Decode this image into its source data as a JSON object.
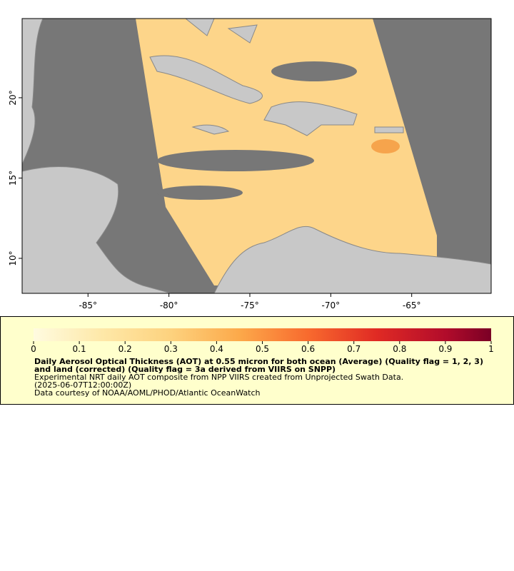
{
  "map": {
    "xlim": [
      -89.07,
      -60.09
    ],
    "ylim": [
      7.82,
      24.93
    ],
    "xticks": [
      {
        "value": -85,
        "label": "-85°"
      },
      {
        "value": -80,
        "label": "-80°"
      },
      {
        "value": -75,
        "label": "-75°"
      },
      {
        "value": -70,
        "label": "-70°"
      },
      {
        "value": -65,
        "label": "-65°"
      }
    ],
    "yticks": [
      {
        "value": 10,
        "label": "10°"
      },
      {
        "value": 15,
        "label": "15°"
      },
      {
        "value": 20,
        "label": "20°"
      }
    ]
  },
  "legend": {
    "clim": [
      0,
      1
    ],
    "ticks": [
      0,
      0.1,
      0.2,
      0.3,
      0.4,
      0.5,
      0.6,
      0.7,
      0.8,
      0.9,
      1
    ],
    "title": "Daily Aerosol Optical Thickness (AOT) at 0.55 micron for both ocean (Average) (Quality flag = 1, 2, 3) and land (corrected) (Quality flag = 3a derived from VIIRS on SNPP)",
    "subtitle": "Experimental NRT daily AOT composite from NPP VIIRS created from Unprojected Swath Data.",
    "time": "(2025-06-07T12:00:00Z)",
    "credit": "Data courtesy of NOAA/AOML/PHOD/Atlantic OceanWatch"
  }
}
